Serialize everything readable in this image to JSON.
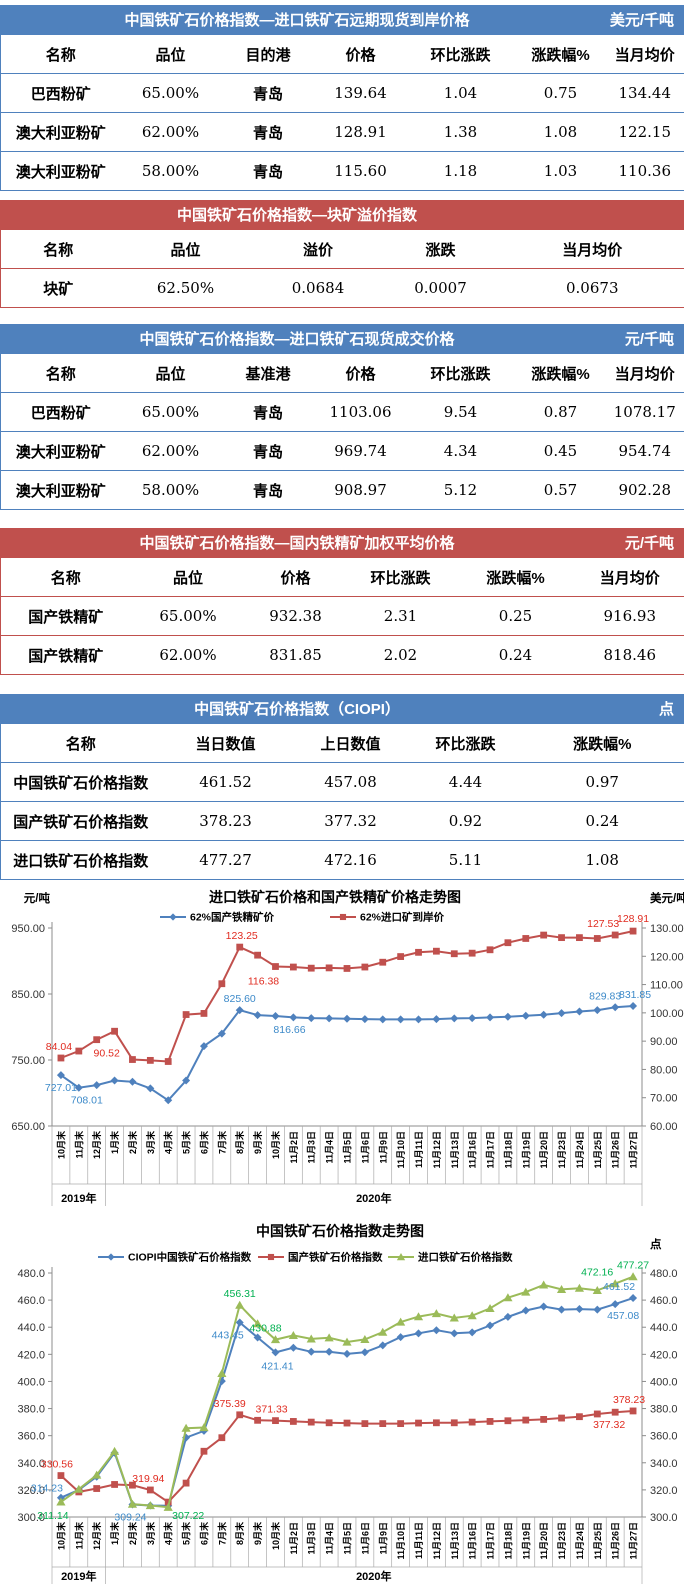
{
  "colors": {
    "band_blue": "#4F81BD",
    "band_red": "#C0504D",
    "series_blue": "#4F81BD",
    "series_red": "#C0504D",
    "series_green": "#9BBB59",
    "label_blue": "#3D8AC9",
    "label_red": "#E02B20",
    "label_green": "#00B050",
    "axis_gray": "#8C8C8C",
    "band_sep_gray": "#ABABAB"
  },
  "tables": [
    {
      "id": "forward-spot-cif",
      "theme": "blue",
      "title": "中国铁矿石价格指数—进口铁矿石远期现货到岸价格",
      "unit": "美元/千吨",
      "headers": [
        "名称",
        "品位",
        "目的港",
        "价格",
        "环比涨跌",
        "涨跌幅%",
        "当月均价"
      ],
      "rows": [
        [
          "巴西粉矿",
          "65.00%",
          "青岛",
          "139.64",
          "1.04",
          "0.75",
          "134.44"
        ],
        [
          "澳大利亚粉矿",
          "62.00%",
          "青岛",
          "128.91",
          "1.38",
          "1.08",
          "122.15"
        ],
        [
          "澳大利亚粉矿",
          "58.00%",
          "青岛",
          "115.60",
          "1.18",
          "1.03",
          "110.36"
        ]
      ]
    },
    {
      "id": "lump-premium",
      "theme": "red",
      "title": "中国铁矿石价格指数—块矿溢价指数",
      "unit": "",
      "headers": [
        "名称",
        "品位",
        "溢价",
        "涨跌",
        "当月均价"
      ],
      "rows": [
        [
          "块矿",
          "62.50%",
          "0.0684",
          "0.0007",
          "0.0673"
        ]
      ]
    },
    {
      "id": "import-spot-deal",
      "theme": "blue",
      "title": "中国铁矿石价格指数—进口铁矿石现货成交价格",
      "unit": "元/千吨",
      "headers": [
        "名称",
        "品位",
        "基准港",
        "价格",
        "环比涨跌",
        "涨跌幅%",
        "当月均价"
      ],
      "rows": [
        [
          "巴西粉矿",
          "65.00%",
          "青岛",
          "1103.06",
          "9.54",
          "0.87",
          "1078.17"
        ],
        [
          "澳大利亚粉矿",
          "62.00%",
          "青岛",
          "969.74",
          "4.34",
          "0.45",
          "954.74"
        ],
        [
          "澳大利亚粉矿",
          "58.00%",
          "青岛",
          "908.97",
          "5.12",
          "0.57",
          "902.28"
        ]
      ]
    },
    {
      "id": "domestic-concentrate",
      "theme": "red",
      "title": "中国铁矿石价格指数—国内铁精矿加权平均价格",
      "unit": "元/千吨",
      "headers": [
        "名称",
        "品位",
        "价格",
        "环比涨跌",
        "涨跌幅%",
        "当月均价"
      ],
      "rows": [
        [
          "国产铁精矿",
          "65.00%",
          "932.38",
          "2.31",
          "0.25",
          "916.93"
        ],
        [
          "国产铁精矿",
          "62.00%",
          "831.85",
          "2.02",
          "0.24",
          "818.46"
        ]
      ]
    },
    {
      "id": "ciopi-index",
      "theme": "blue",
      "title": "中国铁矿石价格指数（CIOPI）",
      "unit": "点",
      "headers": [
        "名称",
        "当日数值",
        "上日数值",
        "环比涨跌",
        "涨跌幅%"
      ],
      "rows": [
        [
          "中国铁矿石价格指数",
          "461.52",
          "457.08",
          "4.44",
          "0.97"
        ],
        [
          "国产铁矿石价格指数",
          "378.23",
          "377.32",
          "0.92",
          "0.24"
        ],
        [
          "进口铁矿石价格指数",
          "477.27",
          "472.16",
          "5.11",
          "1.08"
        ]
      ]
    }
  ],
  "chart_data": [
    {
      "type": "line",
      "title": "进口铁矿石价格和国产铁精矿价格走势图",
      "left_axis": {
        "unit": "元/吨",
        "min": 650,
        "max": 950,
        "step": 100,
        "decimals": 2
      },
      "right_axis": {
        "unit": "美元/吨",
        "min": 60,
        "max": 130,
        "step": 10,
        "decimals": 2
      },
      "categories": [
        "10月末",
        "11月末",
        "12月末",
        "1月末",
        "2月末",
        "3月末",
        "4月末",
        "5月末",
        "6月末",
        "7月末",
        "8月末",
        "9月末",
        "10月末",
        "11月2日",
        "11月3日",
        "11月4日",
        "11月5日",
        "11月6日",
        "11月9日",
        "11月10日",
        "11月11日",
        "11月12日",
        "11月13日",
        "11月16日",
        "11月17日",
        "11月18日",
        "11月19日",
        "11月20日",
        "11月23日",
        "11月24日",
        "11月25日",
        "11月26日",
        "11月27日"
      ],
      "year_groups": [
        {
          "label": "2019年",
          "count": 3
        },
        {
          "label": "2020年",
          "count": 30
        }
      ],
      "series": [
        {
          "name": "62%国产铁精矿价",
          "color": "#4F81BD",
          "label_color": "#3D8AC9",
          "marker": "diamond",
          "axis": "left",
          "values": [
            727.01,
            708.01,
            712,
            719,
            717,
            707,
            689,
            719,
            771,
            790,
            825.6,
            818,
            816.66,
            814.5,
            813.5,
            813,
            812.5,
            812,
            811.5,
            811.5,
            811.5,
            812,
            813,
            813.5,
            814.5,
            815.5,
            817,
            818.5,
            821,
            823.5,
            825.5,
            829.83,
            831.85
          ],
          "point_labels": [
            {
              "i": 0,
              "text": "727.01",
              "dx": 0,
              "dy": 16
            },
            {
              "i": 1,
              "text": "708.01",
              "dx": 8,
              "dy": 16
            },
            {
              "i": 10,
              "text": "825.60",
              "dx": 0,
              "dy": -8
            },
            {
              "i": 12,
              "text": "816.66",
              "dx": 14,
              "dy": 17
            },
            {
              "i": 31,
              "text": "829.83",
              "dx": -10,
              "dy": -8
            },
            {
              "i": 32,
              "text": "831.85",
              "dx": 2,
              "dy": -8
            }
          ]
        },
        {
          "name": "62%进口矿到岸价",
          "color": "#C0504D",
          "label_color": "#E02B20",
          "marker": "square",
          "axis": "right",
          "values": [
            84.04,
            86.5,
            90.52,
            93.5,
            83.5,
            83.2,
            82.8,
            99.4,
            99.8,
            110.3,
            123.25,
            120.4,
            116.38,
            116.2,
            115.8,
            115.9,
            115.7,
            116.2,
            117.9,
            119.9,
            121.4,
            121.8,
            120.9,
            121.1,
            122.3,
            124.8,
            126.3,
            127.5,
            126.6,
            126.6,
            126.3,
            127.53,
            128.91
          ],
          "point_labels": [
            {
              "i": 0,
              "text": "84.04",
              "dx": -2,
              "dy": -8
            },
            {
              "i": 2,
              "text": "90.52",
              "dx": 10,
              "dy": 17
            },
            {
              "i": 10,
              "text": "123.25",
              "dx": 2,
              "dy": -8
            },
            {
              "i": 12,
              "text": "116.38",
              "dx": -12,
              "dy": 18
            },
            {
              "i": 31,
              "text": "127.53",
              "dx": -12,
              "dy": -8
            },
            {
              "i": 32,
              "text": "128.91",
              "dx": 0,
              "dy": -9
            }
          ]
        }
      ]
    },
    {
      "type": "line",
      "title": "中国铁矿石价格指数走势图",
      "left_axis": {
        "unit": "",
        "min": 300,
        "max": 480,
        "step": 20,
        "decimals": 1
      },
      "right_axis": {
        "unit": "点",
        "min": 300,
        "max": 480,
        "step": 20,
        "decimals": 1
      },
      "categories": [
        "10月末",
        "11月末",
        "12月末",
        "1月末",
        "2月末",
        "3月末",
        "4月末",
        "5月末",
        "6月末",
        "7月末",
        "8月末",
        "9月末",
        "10月末",
        "11月2日",
        "11月3日",
        "11月4日",
        "11月5日",
        "11月6日",
        "11月9日",
        "11月10日",
        "11月11日",
        "11月12日",
        "11月13日",
        "11月16日",
        "11月17日",
        "11月18日",
        "11月19日",
        "11月20日",
        "11月23日",
        "11月24日",
        "11月25日",
        "11月26日",
        "11月27日"
      ],
      "year_groups": [
        {
          "label": "2019年",
          "count": 3
        },
        {
          "label": "2020年",
          "count": 30
        }
      ],
      "series": [
        {
          "name": "CIOPI中国铁矿石价格指数",
          "color": "#4F81BD",
          "label_color": "#3D8AC9",
          "marker": "diamond",
          "axis": "left",
          "values": [
            314.23,
            320,
            329.7,
            347.4,
            309.24,
            308.5,
            308.3,
            358.6,
            363.5,
            400.2,
            443.45,
            432.4,
            421.41,
            424.9,
            421.9,
            421.9,
            420.3,
            421.5,
            426.6,
            432.7,
            435.5,
            437.8,
            435.5,
            436.2,
            441.3,
            447.6,
            452.3,
            455.3,
            453,
            453.4,
            453,
            457.08,
            461.52
          ],
          "point_labels": [
            {
              "i": 0,
              "text": "314.23",
              "dx": -14,
              "dy": -6
            },
            {
              "i": 4,
              "text": "309.24",
              "dx": -2,
              "dy": 16
            },
            {
              "i": 10,
              "text": "443.45",
              "dx": -12,
              "dy": 16
            },
            {
              "i": 12,
              "text": "421.41",
              "dx": 2,
              "dy": 17
            },
            {
              "i": 31,
              "text": "457.08",
              "dx": 8,
              "dy": 15
            },
            {
              "i": 32,
              "text": "461.52",
              "dx": -14,
              "dy": -8
            }
          ]
        },
        {
          "name": "国产铁矿石价格指数",
          "color": "#C0504D",
          "label_color": "#E02B20",
          "marker": "square",
          "axis": "left",
          "values": [
            330.56,
            318.5,
            321,
            324,
            323.5,
            319.94,
            311,
            325,
            348.5,
            358.5,
            375.39,
            371.33,
            371.1,
            370.5,
            370,
            369.5,
            369.3,
            368.9,
            368.9,
            368.9,
            369.3,
            369.5,
            369.5,
            370,
            370.5,
            371,
            371.5,
            372,
            373,
            374,
            376,
            377.32,
            378.23
          ],
          "point_labels": [
            {
              "i": 0,
              "text": "330.56",
              "dx": -4,
              "dy": -8
            },
            {
              "i": 5,
              "text": "319.94",
              "dx": -2,
              "dy": -8
            },
            {
              "i": 10,
              "text": "375.39",
              "dx": -10,
              "dy": -8
            },
            {
              "i": 11,
              "text": "371.33",
              "dx": 14,
              "dy": -8
            },
            {
              "i": 31,
              "text": "377.32",
              "dx": -6,
              "dy": 16
            },
            {
              "i": 32,
              "text": "378.23",
              "dx": -4,
              "dy": -8
            }
          ]
        },
        {
          "name": "进口铁矿石价格指数",
          "color": "#9BBB59",
          "label_color": "#00B050",
          "marker": "triangle",
          "axis": "left",
          "values": [
            311.14,
            320.5,
            331,
            348.5,
            309.5,
            308.5,
            307.22,
            365.5,
            366,
            405.9,
            456.31,
            442.6,
            430.88,
            434,
            431.4,
            432.2,
            429.1,
            431,
            436.4,
            443.8,
            447.8,
            450.1,
            446.9,
            448.5,
            453.9,
            461.8,
            466,
            471.2,
            467.9,
            468.8,
            467.2,
            472.16,
            477.27
          ],
          "point_labels": [
            {
              "i": 0,
              "text": "311.14",
              "dx": -8,
              "dy": 17
            },
            {
              "i": 6,
              "text": "307.22",
              "dx": 20,
              "dy": 12
            },
            {
              "i": 10,
              "text": "456.31",
              "dx": 0,
              "dy": -8
            },
            {
              "i": 12,
              "text": "430.88",
              "dx": -10,
              "dy": -8
            },
            {
              "i": 31,
              "text": "472.16",
              "dx": -18,
              "dy": -8
            },
            {
              "i": 32,
              "text": "477.27",
              "dx": 0,
              "dy": -8
            }
          ]
        }
      ]
    }
  ]
}
